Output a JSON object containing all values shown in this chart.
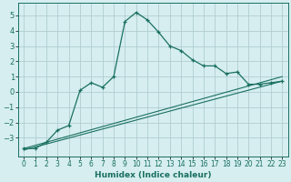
{
  "xlabel": "Humidex (Indice chaleur)",
  "bg_color": "#d6eef0",
  "grid_color": "#b0cdd0",
  "line_color": "#1a7060",
  "xlim": [
    -0.5,
    23.5
  ],
  "ylim": [
    -4.2,
    5.8
  ],
  "xticks": [
    0,
    1,
    2,
    3,
    4,
    5,
    6,
    7,
    8,
    9,
    10,
    11,
    12,
    13,
    14,
    15,
    16,
    17,
    18,
    19,
    20,
    21,
    22,
    23
  ],
  "yticks": [
    -3,
    -2,
    -1,
    0,
    1,
    2,
    3,
    4,
    5
  ],
  "line1_x": [
    0,
    1,
    2,
    3,
    4,
    5,
    6,
    7,
    8,
    9,
    10,
    11,
    12,
    13,
    14,
    15,
    16,
    17,
    18,
    19,
    20,
    21,
    22,
    23
  ],
  "line1_y": [
    -3.7,
    -3.7,
    -3.3,
    -2.5,
    -2.2,
    0.1,
    0.6,
    0.3,
    1.0,
    4.6,
    5.2,
    4.7,
    3.9,
    3.0,
    2.7,
    2.1,
    1.7,
    1.7,
    1.2,
    1.3,
    0.5,
    0.5,
    0.6,
    0.7
  ],
  "line2_x": [
    0,
    23
  ],
  "line2_y": [
    -3.7,
    1.0
  ],
  "line3_x": [
    0,
    23
  ],
  "line3_y": [
    -3.8,
    0.7
  ]
}
